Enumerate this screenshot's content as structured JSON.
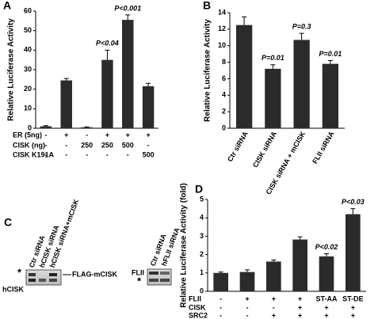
{
  "chart_data": [
    {
      "type": "bar",
      "panel_label": "A",
      "y_label": "Relative Luciferase Activity",
      "values": [
        1,
        24.5,
        0.5,
        35,
        55.5,
        21.5
      ],
      "errors": [
        0.3,
        1,
        0.2,
        5,
        2.5,
        1.5
      ],
      "value_annotations": [
        null,
        null,
        null,
        "P<0.04",
        "P<0.001",
        null
      ],
      "color": "#2b2b2b",
      "ylim": [
        0,
        60
      ],
      "yticks": [
        0,
        10,
        20,
        30,
        40,
        50,
        60
      ],
      "conditions": [
        {
          "label": "ER (5ng)",
          "values": [
            "-",
            "+",
            "-",
            "+",
            "+",
            "+"
          ]
        },
        {
          "label": "CISK (ng)",
          "values": [
            "-",
            "-",
            "250",
            "250",
            "500",
            "-"
          ]
        },
        {
          "label": "CISK K191A",
          "values": [
            "-",
            "-",
            "-",
            "-",
            "-",
            "500"
          ]
        }
      ]
    },
    {
      "type": "bar",
      "panel_label": "B",
      "y_label": "Relative Luciferase Activity",
      "categories": [
        "Ctr siRNA",
        "CISK siRNA",
        "CISK siRNA + mCISK",
        "FLII siRNA"
      ],
      "values": [
        12.5,
        7.2,
        10.7,
        7.8
      ],
      "errors": [
        1,
        0.5,
        0.8,
        0.4
      ],
      "value_annotations": [
        null,
        "P=0.01",
        "P=0.3",
        "P=0.01"
      ],
      "color": "#2b2b2b",
      "ylim": [
        0,
        14
      ],
      "yticks": [
        0,
        2,
        4,
        6,
        8,
        10,
        12,
        14
      ]
    },
    {
      "type": "bar",
      "panel_label": "D",
      "y_label": "Relative Luciferase Activity (fold)",
      "values": [
        1,
        1.05,
        1.62,
        2.82,
        1.9,
        4.2
      ],
      "errors": [
        0.05,
        0.12,
        0.08,
        0.15,
        0.15,
        0.3
      ],
      "value_annotations": [
        null,
        null,
        null,
        null,
        "P<0.02",
        "P<0.03"
      ],
      "color": "#2b2b2b",
      "ylim": [
        0,
        5
      ],
      "yticks": [
        0,
        1,
        2,
        3,
        4,
        5
      ],
      "conditions": [
        {
          "label": "FLII",
          "values": [
            "-",
            "+",
            "+",
            "+",
            "ST-AA",
            "ST-DE"
          ]
        },
        {
          "label": "CISK",
          "values": [
            "-",
            "-",
            "-",
            "+",
            "+",
            "+"
          ]
        },
        {
          "label": "SRC2",
          "values": [
            "-",
            "-",
            "+",
            "+",
            "+",
            "+"
          ]
        }
      ]
    }
  ],
  "blots": {
    "panel_label": "C",
    "left": {
      "lanes": [
        "Ctr siRNA",
        "hCISK siRNA",
        "hCISK siRNA+mCISK"
      ],
      "star": "*",
      "band_left": "hCISK",
      "band_right": "FLAG-mCISK"
    },
    "right": {
      "lanes": [
        "Ctr siRNA",
        "hFLII siRNA"
      ],
      "band_left": "FLII",
      "star": "*"
    }
  }
}
